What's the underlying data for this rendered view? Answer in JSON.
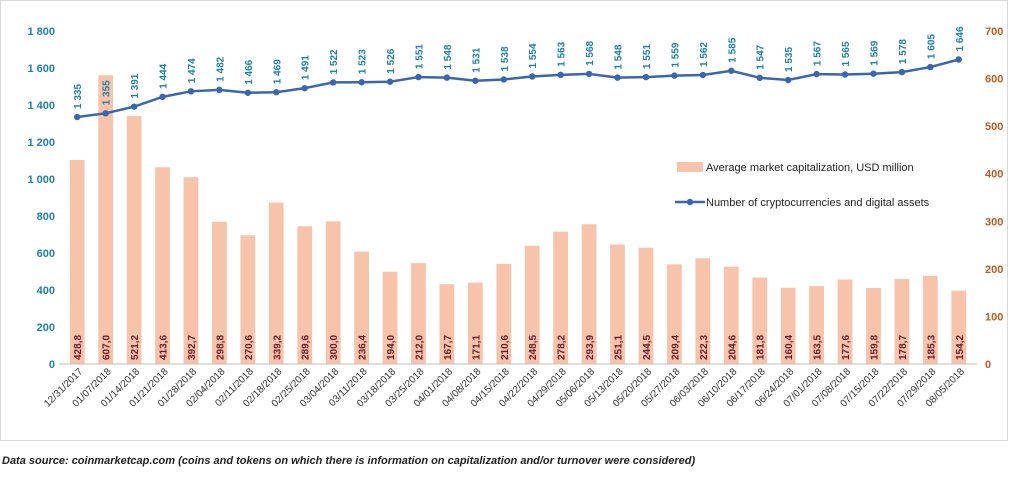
{
  "source_note": "Data source: coinmarketcap.com (coins and tokens on which there is information on capitalization and/or turnover were considered)",
  "colors": {
    "bar": "#f7c4ab",
    "line": "#3a66b0",
    "left_axis_text": "#1f7fa8",
    "right_axis_text": "#c05a20",
    "bar_label": "#6b1b2a"
  },
  "chart_data": {
    "type": "bar",
    "categories": [
      "12/31/2017",
      "01/07/2018",
      "01/14/2018",
      "01/21/2018",
      "01/28/2018",
      "02/04/2018",
      "02/11/2018",
      "02/18/2018",
      "02/25/2018",
      "03/04/2018",
      "03/11/2018",
      "03/18/2018",
      "03/25/2018",
      "04/01/2018",
      "04/08/2018",
      "04/15/2018",
      "04/22/2018",
      "04/29/2018",
      "05/06/2018",
      "05/13/2018",
      "05/20/2018",
      "05/27/2018",
      "06/03/2018",
      "06/10/2018",
      "06/17/2018",
      "06/24/2018",
      "07/01/2018",
      "07/08/2018",
      "07/15/2018",
      "07/22/2018",
      "07/29/2018",
      "08/05/2018"
    ],
    "series": [
      {
        "name": "Average market capitalization, USD million",
        "type": "bar",
        "axis": "right",
        "values": [
          428.8,
          607.0,
          521.2,
          413.6,
          392.7,
          298.8,
          270.6,
          339.2,
          289.6,
          300.0,
          236.4,
          194.0,
          212.0,
          167.7,
          171.1,
          210.6,
          248.5,
          278.2,
          293.9,
          251.1,
          244.5,
          209.4,
          222.3,
          204.6,
          181.8,
          160.4,
          163.5,
          177.6,
          159.8,
          178.7,
          185.3,
          154.2
        ],
        "labels": [
          "428,8",
          "607,0",
          "521,2",
          "413,6",
          "392,7",
          "298,8",
          "270,6",
          "339,2",
          "289,6",
          "300,0",
          "236,4",
          "194,0",
          "212,0",
          "167,7",
          "171,1",
          "210,6",
          "248,5",
          "278,2",
          "293,9",
          "251,1",
          "244,5",
          "209,4",
          "222,3",
          "204,6",
          "181,8",
          "160,4",
          "163,5",
          "177,6",
          "159,8",
          "178,7",
          "185,3",
          "154,2"
        ]
      },
      {
        "name": "Number of cryptocurrencies and digital assets",
        "type": "line",
        "axis": "left",
        "values": [
          1335,
          1355,
          1391,
          1444,
          1474,
          1482,
          1466,
          1469,
          1491,
          1522,
          1523,
          1526,
          1551,
          1548,
          1531,
          1538,
          1554,
          1563,
          1568,
          1548,
          1551,
          1559,
          1562,
          1585,
          1547,
          1535,
          1567,
          1565,
          1569,
          1578,
          1605,
          1646
        ],
        "labels": [
          "1 335",
          "1 355",
          "1 391",
          "1 444",
          "1 474",
          "1 482",
          "1 466",
          "1 469",
          "1 491",
          "1 522",
          "1 523",
          "1 526",
          "1 551",
          "1 548",
          "1 531",
          "1 538",
          "1 554",
          "1 563",
          "1 568",
          "1 548",
          "1 551",
          "1 559",
          "1 562",
          "1 585",
          "1 547",
          "1 535",
          "1 567",
          "1 565",
          "1 569",
          "1 578",
          "1 605",
          "1 646"
        ]
      }
    ],
    "left_axis": {
      "ylim": [
        0,
        1800
      ],
      "ticks": [
        "0",
        "200",
        "400",
        "600",
        "800",
        "1 000",
        "1 200",
        "1 400",
        "1 600",
        "1 800"
      ]
    },
    "right_axis": {
      "ylim": [
        0,
        700
      ],
      "ticks": [
        "0",
        "100",
        "200",
        "300",
        "400",
        "500",
        "600",
        "700"
      ]
    },
    "legend": {
      "placement": "right-middle"
    },
    "grid": false
  }
}
